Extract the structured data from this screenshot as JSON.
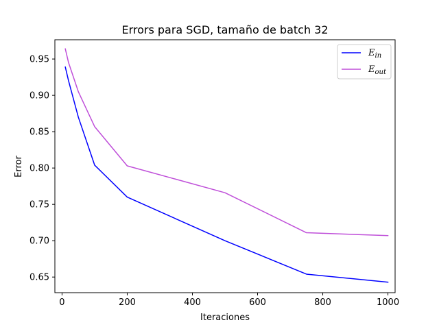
{
  "chart_data": {
    "type": "line",
    "title": "Errors para SGD, tamaño de batch 32",
    "xlabel": "Iteraciones",
    "ylabel": "Error",
    "xlim": [
      -22,
      1022
    ],
    "ylim": [
      0.6285,
      0.9765
    ],
    "xticks": [
      0,
      200,
      400,
      600,
      800,
      1000
    ],
    "yticks": [
      0.65,
      0.7,
      0.75,
      0.8,
      0.85,
      0.9,
      0.95
    ],
    "ytick_labels": [
      "0.65",
      "0.70",
      "0.75",
      "0.80",
      "0.85",
      "0.90",
      "0.95"
    ],
    "grid": false,
    "legend_position": "upper-right",
    "series": [
      {
        "name_main": "E",
        "name_sub": "in",
        "color": "#0000ff",
        "x": [
          10,
          20,
          50,
          100,
          200,
          500,
          750,
          1000
        ],
        "y": [
          0.939,
          0.92,
          0.87,
          0.804,
          0.76,
          0.7,
          0.654,
          0.643
        ]
      },
      {
        "name_main": "E",
        "name_sub": "out",
        "color": "#bf4fd9",
        "x": [
          10,
          20,
          50,
          100,
          200,
          500,
          750,
          1000
        ],
        "y": [
          0.964,
          0.945,
          0.905,
          0.857,
          0.803,
          0.766,
          0.711,
          0.707
        ]
      }
    ]
  }
}
